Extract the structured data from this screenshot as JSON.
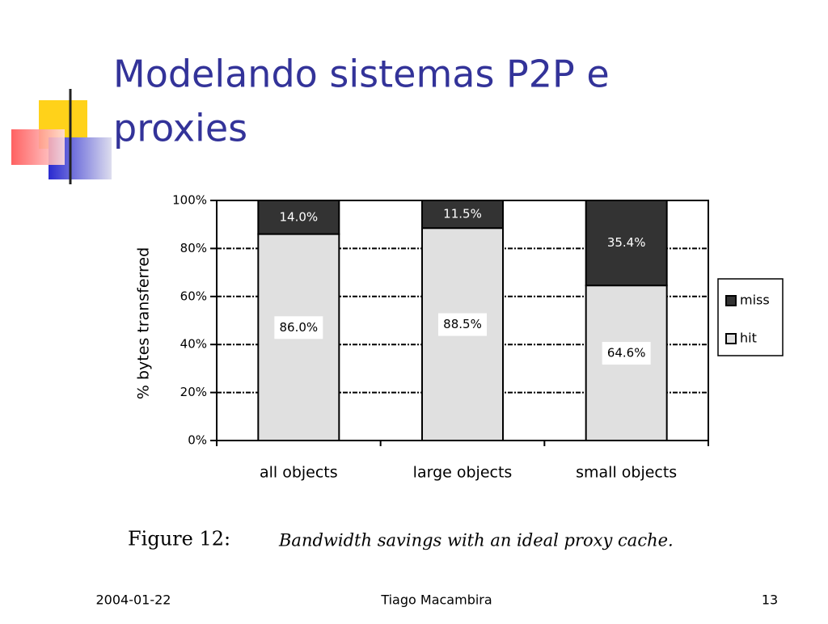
{
  "slide": {
    "title_line1": "Modelando sistemas P2P e",
    "title_line2": "proxies",
    "footer_date": "2004-01-22",
    "footer_author": "Tiago Macambira",
    "footer_page": "13"
  },
  "chart_data": {
    "type": "stacked-bar",
    "ylabel": "% bytes transferred",
    "caption_label": "Figure 12:",
    "caption_text": "Bandwidth savings with an ideal proxy cache.",
    "categories": [
      "all objects",
      "large objects",
      "small objects"
    ],
    "series": [
      {
        "name": "hit",
        "color": "#e0e0e0",
        "values": [
          86.0,
          88.5,
          64.6
        ],
        "value_labels": [
          "86.0%",
          "88.5%",
          "64.6%"
        ]
      },
      {
        "name": "miss",
        "color": "#333333",
        "values": [
          14.0,
          11.5,
          35.4
        ],
        "value_labels": [
          "14.0%",
          "11.5%",
          "35.4%"
        ]
      }
    ],
    "ylim": [
      0,
      100
    ],
    "yticks": [
      {
        "value": 0,
        "label": "0%"
      },
      {
        "value": 20,
        "label": "20%"
      },
      {
        "value": 40,
        "label": "40%"
      },
      {
        "value": 60,
        "label": "60%"
      },
      {
        "value": 80,
        "label": "80%"
      },
      {
        "value": 100,
        "label": "100%"
      }
    ],
    "grid": true,
    "legend": "right"
  }
}
